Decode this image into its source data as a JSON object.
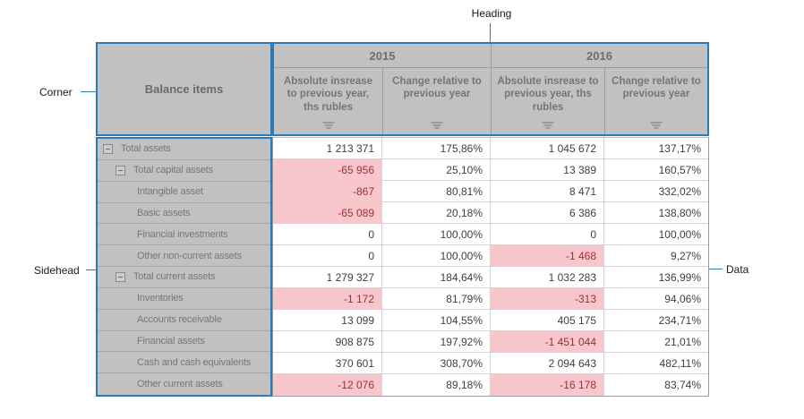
{
  "annotations": {
    "heading": "Heading",
    "corner": "Corner",
    "sidehead": "Sidehead",
    "data": "Data"
  },
  "colors": {
    "callout_blue": "#2f7bad",
    "block_border_blue": "#2a7ab8",
    "header_gray": "#c1c1c1",
    "negative_bg": "#f8c7cc",
    "negative_text": "#9e2d36"
  },
  "grid": {
    "corner_title": "Balance items",
    "column_groups": [
      {
        "year": "2015",
        "columns": [
          "Absolute insrease to previous year, ths rubles",
          "Change relative to previous year"
        ]
      },
      {
        "year": "2016",
        "columns": [
          "Absolute insrease to previous year, ths rubles",
          "Change relative to previous year"
        ]
      }
    ],
    "rows": [
      {
        "label": "Total assets",
        "level": 0,
        "expandable": true,
        "values": [
          "1 213 371",
          "175,86%",
          "1 045 672",
          "137,17%"
        ]
      },
      {
        "label": "Total capital assets",
        "level": 1,
        "expandable": true,
        "values": [
          "-65 956",
          "25,10%",
          "13 389",
          "160,57%"
        ]
      },
      {
        "label": "Intangible asset",
        "level": 2,
        "expandable": false,
        "values": [
          "-867",
          "80,81%",
          "8 471",
          "332,02%"
        ]
      },
      {
        "label": "Basic assets",
        "level": 2,
        "expandable": false,
        "values": [
          "-65 089",
          "20,18%",
          "6 386",
          "138,80%"
        ]
      },
      {
        "label": "Financial investments",
        "level": 2,
        "expandable": false,
        "values": [
          "0",
          "100,00%",
          "0",
          "100,00%"
        ]
      },
      {
        "label": "Other non-current assets",
        "level": 2,
        "expandable": false,
        "values": [
          "0",
          "100,00%",
          "-1 468",
          "9,27%"
        ]
      },
      {
        "label": "Total current assets",
        "level": 1,
        "expandable": true,
        "values": [
          "1 279 327",
          "184,64%",
          "1 032 283",
          "136,99%"
        ]
      },
      {
        "label": "Inventories",
        "level": 2,
        "expandable": false,
        "values": [
          "-1 172",
          "81,79%",
          "-313",
          "94,06%"
        ]
      },
      {
        "label": "Accounts receivable",
        "level": 2,
        "expandable": false,
        "values": [
          "13 099",
          "104,55%",
          "405 175",
          "234,71%"
        ]
      },
      {
        "label": "Financial assets",
        "level": 2,
        "expandable": false,
        "values": [
          "908 875",
          "197,92%",
          "-1 451 044",
          "21,01%"
        ]
      },
      {
        "label": "Cash and cash equivalents",
        "level": 2,
        "expandable": false,
        "values": [
          "370 601",
          "308,70%",
          "2 094 643",
          "482,11%"
        ]
      },
      {
        "label": "Other current assets",
        "level": 2,
        "expandable": false,
        "values": [
          "-12 076",
          "89,18%",
          "-16 178",
          "83,74%"
        ]
      }
    ]
  }
}
